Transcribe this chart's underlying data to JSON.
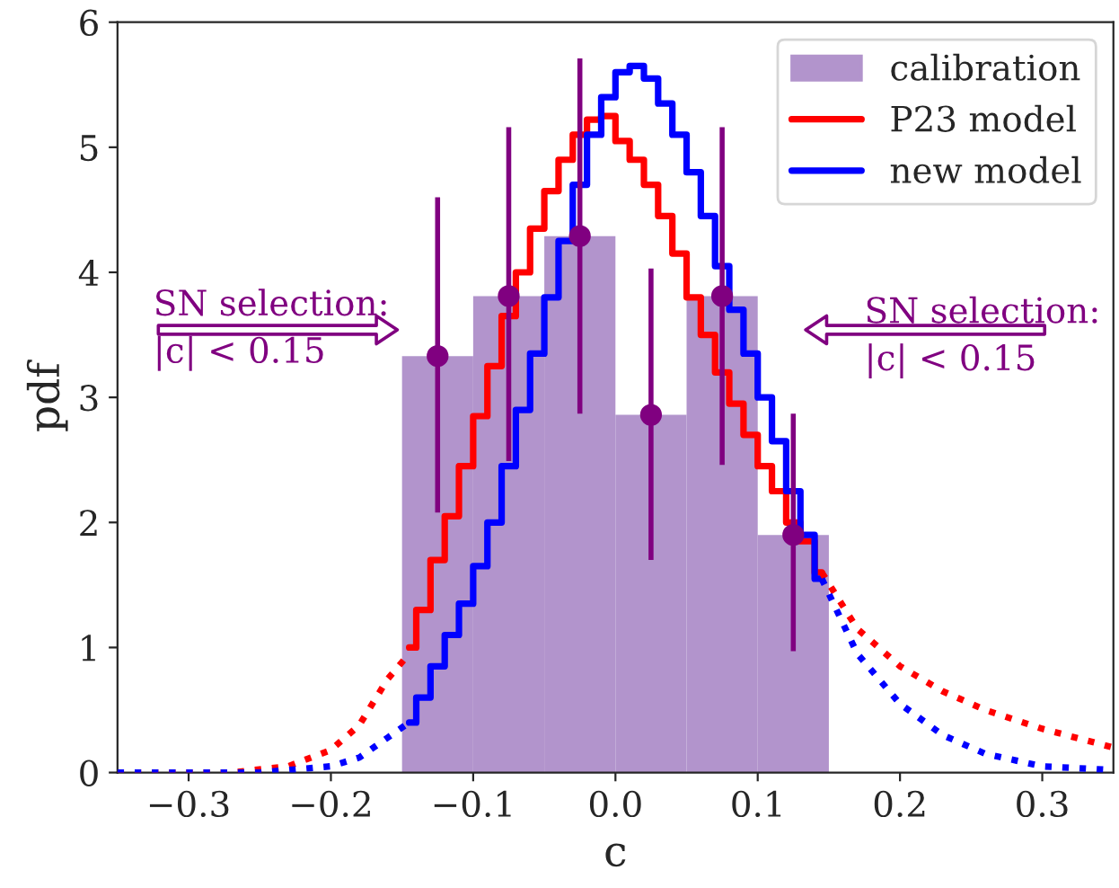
{
  "chart_data": {
    "type": "histogram",
    "xlabel": "c",
    "ylabel": "pdf",
    "xlim": [
      -0.35,
      0.35
    ],
    "ylim": [
      0,
      6
    ],
    "xticks": [
      {
        "value": -0.3,
        "label": "−0.3"
      },
      {
        "value": -0.2,
        "label": "−0.2"
      },
      {
        "value": -0.1,
        "label": "−0.1"
      },
      {
        "value": 0.0,
        "label": "0.0"
      },
      0.1,
      0.2,
      0.3
    ],
    "yticks": [
      0,
      1,
      2,
      3,
      4,
      5,
      6
    ],
    "grid": false,
    "legend": "top right",
    "series": [
      {
        "name": "calibration",
        "color": "#b294cc",
        "bins": [
          -0.15,
          -0.1,
          -0.05,
          0.0,
          0.05,
          0.1,
          0.15
        ],
        "values": [
          3.33,
          3.81,
          4.29,
          2.86,
          3.81,
          1.9
        ]
      },
      {
        "type": "step",
        "name": "P23 model",
        "color": "#ff0000",
        "line_style": "solid",
        "x": [
          -0.145,
          -0.135,
          -0.125,
          -0.115,
          -0.105,
          -0.095,
          -0.085,
          -0.075,
          -0.065,
          -0.055,
          -0.045,
          -0.035,
          -0.025,
          -0.015,
          -0.005,
          0.005,
          0.015,
          0.025,
          0.035,
          0.045,
          0.055,
          0.065,
          0.075,
          0.085,
          0.095,
          0.105,
          0.115,
          0.125,
          0.135,
          0.145
        ],
        "values": [
          1.0,
          1.3,
          1.7,
          2.05,
          2.45,
          2.85,
          3.25,
          3.65,
          4.0,
          4.35,
          4.65,
          4.9,
          5.1,
          5.22,
          5.25,
          5.05,
          4.9,
          4.7,
          4.45,
          4.15,
          3.8,
          3.5,
          3.2,
          2.95,
          2.7,
          2.45,
          2.25,
          2.0,
          1.85,
          1.6
        ]
      },
      {
        "type": "step",
        "name": "new model",
        "color": "#0000ff",
        "line_style": "solid",
        "x": [
          -0.145,
          -0.135,
          -0.125,
          -0.115,
          -0.105,
          -0.095,
          -0.085,
          -0.075,
          -0.065,
          -0.055,
          -0.045,
          -0.035,
          -0.025,
          -0.015,
          -0.005,
          0.005,
          0.015,
          0.025,
          0.035,
          0.045,
          0.055,
          0.065,
          0.075,
          0.085,
          0.095,
          0.105,
          0.115,
          0.125,
          0.135,
          0.145
        ],
        "values": [
          0.4,
          0.6,
          0.85,
          1.1,
          1.35,
          1.65,
          2.0,
          2.45,
          2.9,
          3.35,
          3.8,
          4.25,
          4.7,
          5.1,
          5.4,
          5.6,
          5.65,
          5.55,
          5.35,
          5.1,
          4.8,
          4.45,
          4.05,
          3.7,
          3.35,
          3.0,
          2.65,
          2.25,
          1.9,
          1.55
        ]
      },
      {
        "type": "line",
        "color": "#ff0000",
        "line_style": "dotted",
        "x": [
          -0.35,
          -0.27,
          -0.23,
          -0.2,
          -0.18,
          -0.16,
          -0.145
        ],
        "values": [
          0,
          0,
          0.05,
          0.18,
          0.38,
          0.75,
          0.95
        ]
      },
      {
        "type": "line",
        "color": "#ff0000",
        "line_style": "dotted",
        "x": [
          0.145,
          0.17,
          0.2,
          0.23,
          0.26,
          0.3,
          0.35
        ],
        "values": [
          1.6,
          1.15,
          0.85,
          0.65,
          0.5,
          0.35,
          0.2
        ]
      },
      {
        "type": "line",
        "color": "#0000ff",
        "line_style": "dotted",
        "x": [
          -0.35,
          -0.25,
          -0.2,
          -0.18,
          -0.16,
          -0.145
        ],
        "values": [
          0,
          0,
          0.05,
          0.12,
          0.28,
          0.4
        ]
      },
      {
        "type": "line",
        "color": "#0000ff",
        "line_style": "dotted",
        "x": [
          0.145,
          0.17,
          0.2,
          0.23,
          0.26,
          0.3,
          0.35
        ],
        "values": [
          1.55,
          0.95,
          0.55,
          0.3,
          0.15,
          0.05,
          0.02
        ]
      },
      {
        "type": "scatter",
        "color": "#800080",
        "marker": "circle",
        "x": [
          -0.125,
          -0.075,
          -0.025,
          0.025,
          0.075,
          0.125
        ],
        "values": [
          3.33,
          3.81,
          4.29,
          2.86,
          3.81,
          1.9
        ],
        "errors": [
          [
            2.08,
            4.6
          ],
          [
            2.49,
            5.16
          ],
          [
            2.87,
            5.71
          ],
          [
            1.7,
            4.03
          ],
          [
            2.46,
            5.16
          ],
          [
            0.97,
            2.87
          ]
        ]
      }
    ],
    "annotations": [
      "SN selection:\n|c| < 0.15",
      "SN selection:\n|c| < 0.15"
    ]
  }
}
